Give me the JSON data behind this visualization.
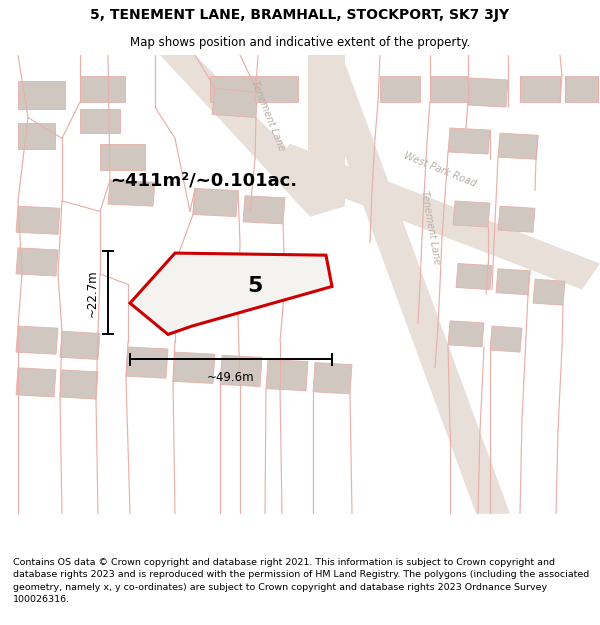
{
  "title": "5, TENEMENT LANE, BRAMHALL, STOCKPORT, SK7 3JY",
  "subtitle": "Map shows position and indicative extent of the property.",
  "footer": "Contains OS data © Crown copyright and database right 2021. This information is subject to Crown copyright and database rights 2023 and is reproduced with the permission of HM Land Registry. The polygons (including the associated geometry, namely x, y co-ordinates) are subject to Crown copyright and database rights 2023 Ordnance Survey 100026316.",
  "area_label": "~411m²/~0.101ac.",
  "width_label": "~49.6m",
  "height_label": "~22.7m",
  "property_number": "5",
  "bg_color": "#f5f3f0",
  "road_fill": "#e8e0d8",
  "building_color": "#d0c8c0",
  "road_line_color": "#e8b0a8",
  "tenement_label_color": "#b8b0a8",
  "plot_color": "#cc0000",
  "title_fontsize": 10,
  "subtitle_fontsize": 8.5,
  "footer_fontsize": 6.8,
  "area_fontsize": 13,
  "number_fontsize": 16,
  "dim_fontsize": 8.5,
  "label_fontsize": 7
}
